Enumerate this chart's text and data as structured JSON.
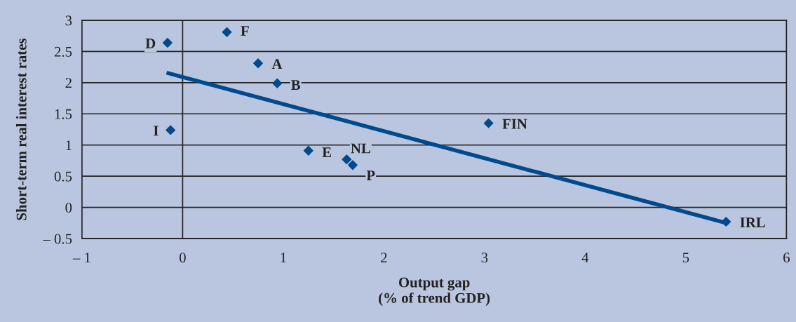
{
  "chart_data": {
    "type": "scatter",
    "xlabel": "Output gap\n(% of trend GDP)",
    "ylabel": "Short-term real interest rates",
    "series": [
      {
        "color": "#004a8d",
        "x": [
          0.44,
          -0.15,
          0.75,
          0.94,
          -0.12,
          1.25,
          1.63,
          1.69,
          3.04,
          5.4
        ],
        "values": [
          2.81,
          2.64,
          2.31,
          1.99,
          1.24,
          0.91,
          0.77,
          0.68,
          1.35,
          -0.23
        ]
      },
      {
        "type": "line",
        "marker": "none",
        "color": "#004a8d",
        "x": [
          -0.16,
          5.4
        ],
        "values": [
          2.16,
          -0.25
        ]
      }
    ],
    "annotations": [
      {
        "text": "F",
        "x": 0.44,
        "y": 2.81
      },
      {
        "text": "D",
        "x": -0.15,
        "y": 2.64
      },
      {
        "text": "A",
        "x": 0.75,
        "y": 2.31
      },
      {
        "text": "B",
        "x": 0.94,
        "y": 1.99
      },
      {
        "text": "I",
        "x": -0.12,
        "y": 1.24
      },
      {
        "text": "E",
        "x": 1.25,
        "y": 0.91
      },
      {
        "text": "NL",
        "x": 1.63,
        "y": 0.77
      },
      {
        "text": "P",
        "x": 1.69,
        "y": 0.68
      },
      {
        "text": "FIN",
        "x": 3.04,
        "y": 1.35
      },
      {
        "text": "IRL",
        "x": 5.4,
        "y": -0.23
      }
    ],
    "ref_lines": [
      {
        "axis": "x",
        "value": 0,
        "color": "#222222"
      }
    ],
    "xlim": [
      -1,
      6
    ],
    "ylim": [
      -0.5,
      3
    ],
    "xticks": [
      {
        "value": -1,
        "label": "– 1"
      },
      0,
      1,
      2,
      3,
      4,
      5,
      6
    ],
    "yticks": [
      {
        "value": -0.5,
        "label": "– 0.5"
      },
      0,
      0.5,
      1,
      1.5,
      2,
      2.5,
      3
    ],
    "grid": "y",
    "marker": "diamond",
    "line_style": "solid",
    "legend": false
  }
}
